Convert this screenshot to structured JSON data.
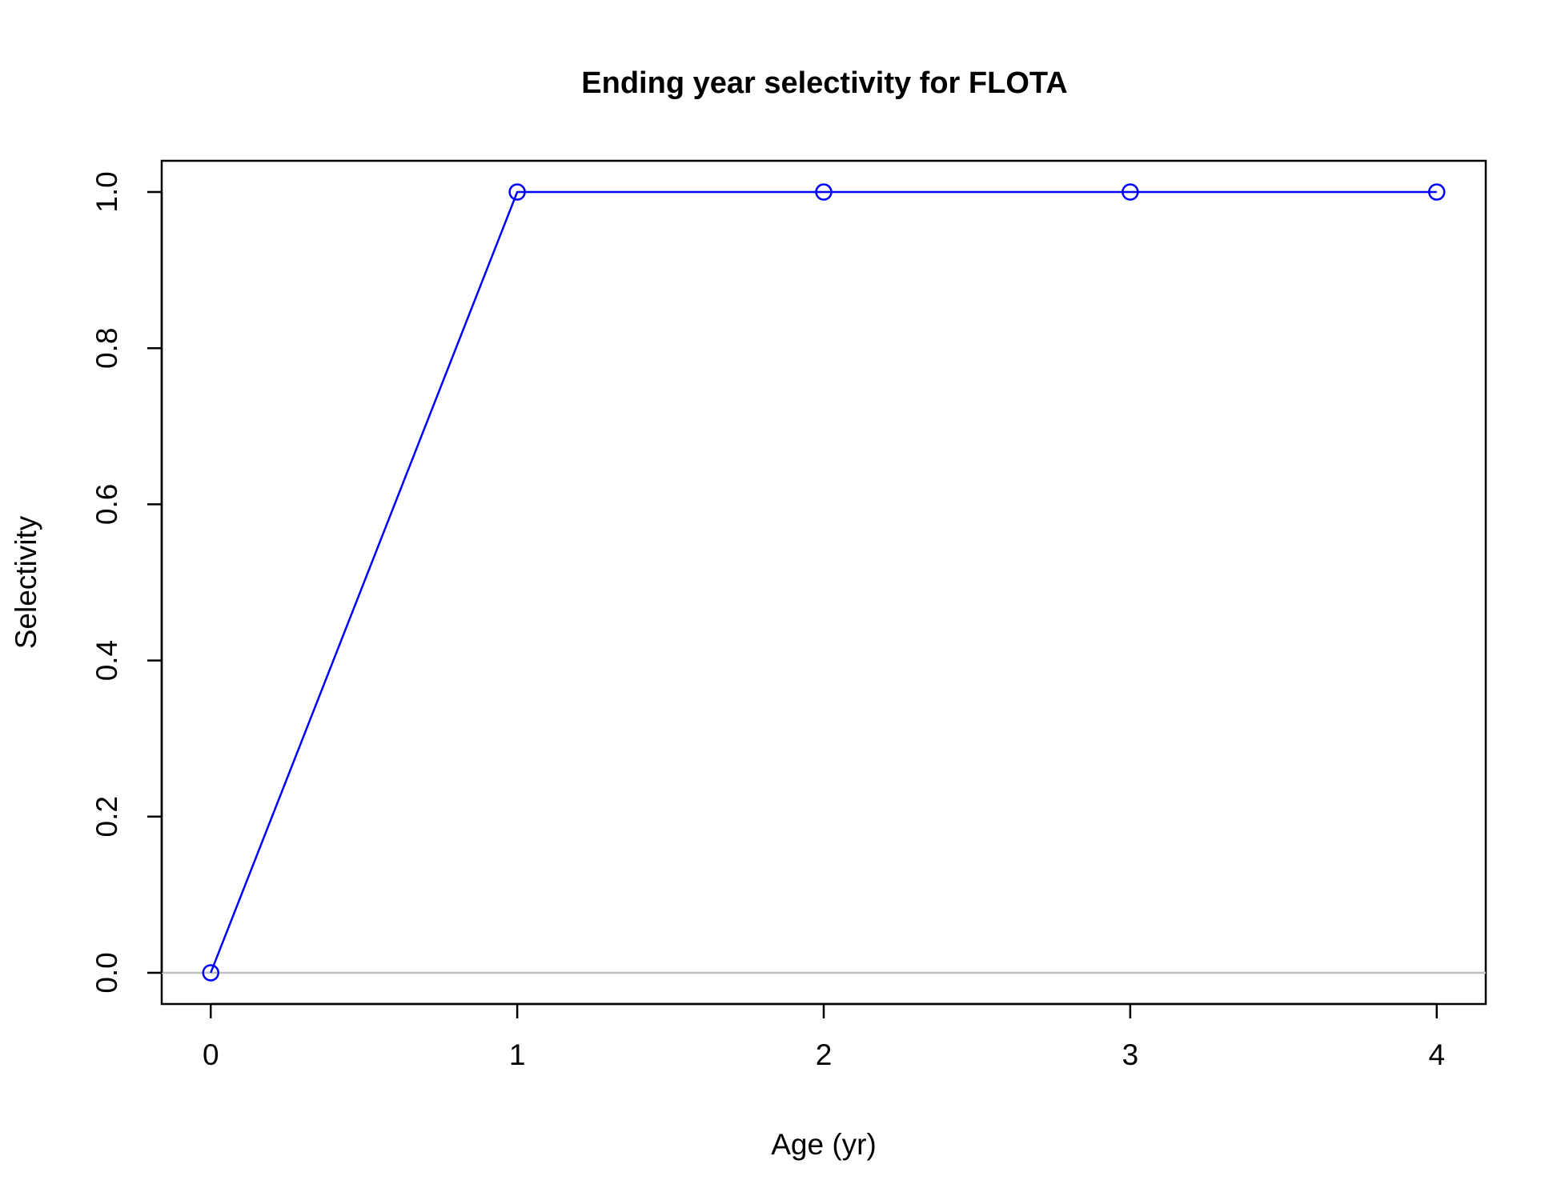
{
  "chart_data": {
    "type": "line",
    "title": "Ending year selectivity for FLOTA",
    "xlabel": "Age (yr)",
    "ylabel": "Selectivity",
    "x": [
      0,
      1,
      2,
      3,
      4
    ],
    "series": [
      {
        "values": [
          0.0,
          1.0,
          1.0,
          1.0,
          1.0
        ]
      }
    ],
    "xlim": [
      -0.16,
      4.16
    ],
    "ylim": [
      -0.04,
      1.04
    ],
    "x_ticks": [
      0,
      1,
      2,
      3,
      4
    ],
    "x_tick_labels": [
      "0",
      "1",
      "2",
      "3",
      "4"
    ],
    "y_ticks": [
      0.0,
      0.2,
      0.4,
      0.6,
      0.8,
      1.0
    ],
    "y_tick_labels": [
      "0.0",
      "0.2",
      "0.4",
      "0.6",
      "0.8",
      "1.0"
    ],
    "reference_line": {
      "y": 0
    },
    "grid": false,
    "marker": "open-circle",
    "colors": {
      "series": "#0000ff",
      "reference_line": "#bebebe",
      "axes": "#000000"
    }
  }
}
